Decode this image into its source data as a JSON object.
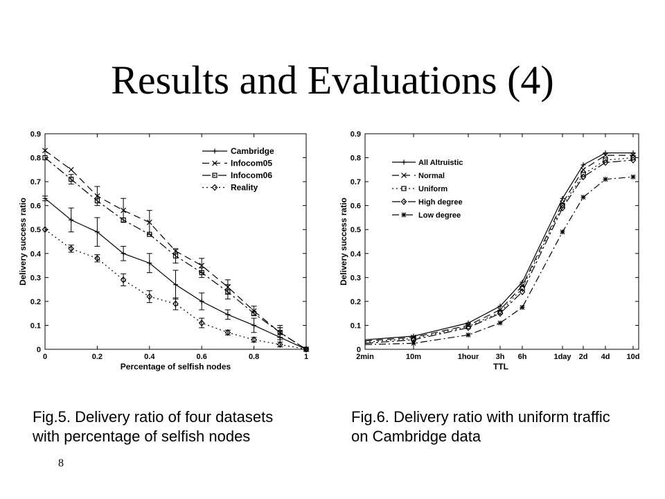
{
  "slide": {
    "title": "Results and Evaluations (4)",
    "page_number": "8"
  },
  "captions": {
    "left": [
      "Fig.5. Delivery ratio of four datasets",
      "with percentage of selfish nodes"
    ],
    "right": [
      "Fig.6. Delivery ratio with uniform traffic",
      "on Cambridge data"
    ]
  },
  "chart_data": [
    {
      "type": "line",
      "xlabel": "Percentage of selfish nodes",
      "ylabel": "Delivery success ratio",
      "xlim": [
        0,
        1
      ],
      "ylim": [
        0,
        0.9
      ],
      "x_ticks": [
        "0",
        "0.2",
        "0.4",
        "0.6",
        "0.8",
        "1"
      ],
      "y_ticks": [
        "0",
        "0.1",
        "0.2",
        "0.3",
        "0.4",
        "0.5",
        "0.6",
        "0.7",
        "0.8",
        "0.9"
      ],
      "legend_position": "top-right",
      "x": [
        0,
        0.1,
        0.2,
        0.3,
        0.4,
        0.5,
        0.6,
        0.7,
        0.8,
        0.9,
        1.0
      ],
      "series": [
        {
          "name": "Cambridge",
          "dash": "",
          "marker": "plus",
          "values": [
            0.63,
            0.54,
            0.49,
            0.4,
            0.36,
            0.27,
            0.2,
            0.145,
            0.1,
            0.05,
            0.0
          ],
          "errors": [
            0.01,
            0.05,
            0.06,
            0.03,
            0.04,
            0.06,
            0.035,
            0.02,
            0.03,
            0.04,
            0.0
          ]
        },
        {
          "name": "Infocom05",
          "dash": "10 6",
          "marker": "x",
          "values": [
            0.83,
            0.75,
            0.64,
            0.58,
            0.53,
            0.41,
            0.35,
            0.26,
            0.16,
            0.07,
            0.0
          ],
          "errors": [
            0.0,
            0.0,
            0.04,
            0.05,
            0.05,
            0.0,
            0.03,
            0.03,
            0.02,
            0.02,
            0.0
          ]
        },
        {
          "name": "Infocom06",
          "dash": "12 4 3 4",
          "marker": "square",
          "values": [
            0.8,
            0.71,
            0.62,
            0.54,
            0.48,
            0.39,
            0.32,
            0.24,
            0.15,
            0.07,
            0.0
          ],
          "errors": [
            0.0,
            0.02,
            0.0,
            0.0,
            0.0,
            0.03,
            0.02,
            0.03,
            0.0,
            0.03,
            0.0
          ]
        },
        {
          "name": "Reality",
          "dash": "2 4",
          "marker": "diamond",
          "values": [
            0.5,
            0.42,
            0.38,
            0.29,
            0.22,
            0.19,
            0.11,
            0.07,
            0.04,
            0.02,
            0.0
          ],
          "errors": [
            0.0,
            0.015,
            0.015,
            0.025,
            0.025,
            0.025,
            0.02,
            0.01,
            0.01,
            0.01,
            0.0
          ]
        }
      ]
    },
    {
      "type": "line",
      "xlabel": "TTL",
      "ylabel": "Delivery success ratio",
      "ylim": [
        0,
        0.9
      ],
      "x_ticks": [
        "2min",
        "10m",
        "1hour",
        "3h",
        "6h",
        "1day",
        "2d",
        "4d",
        "10d"
      ],
      "y_ticks": [
        "0",
        "0.1",
        "0.2",
        "0.3",
        "0.4",
        "0.5",
        "0.6",
        "0.7",
        "0.8",
        "0.9"
      ],
      "legend_position": "top-left",
      "x": [
        "2min",
        "10m",
        "1hour",
        "3h",
        "6h",
        "1day",
        "2d",
        "4d",
        "10d"
      ],
      "series": [
        {
          "name": "All Altruistic",
          "dash": "",
          "marker": "plus",
          "values": [
            0.04,
            0.055,
            0.11,
            0.18,
            0.28,
            0.63,
            0.77,
            0.82,
            0.82
          ]
        },
        {
          "name": "Normal",
          "dash": "10 6",
          "marker": "x",
          "values": [
            0.035,
            0.05,
            0.1,
            0.165,
            0.265,
            0.61,
            0.75,
            0.81,
            0.81
          ]
        },
        {
          "name": "Uniform",
          "dash": "2 4",
          "marker": "square",
          "values": [
            0.03,
            0.045,
            0.095,
            0.155,
            0.255,
            0.6,
            0.73,
            0.79,
            0.8
          ]
        },
        {
          "name": "High degree",
          "dash": "12 4 3 4",
          "marker": "diamond",
          "values": [
            0.025,
            0.04,
            0.09,
            0.15,
            0.24,
            0.59,
            0.72,
            0.78,
            0.79
          ]
        },
        {
          "name": "Low degree",
          "dash": "10 4 2 4",
          "marker": "star",
          "values": [
            0.02,
            0.025,
            0.06,
            0.11,
            0.175,
            0.49,
            0.635,
            0.71,
            0.72
          ]
        }
      ]
    }
  ]
}
